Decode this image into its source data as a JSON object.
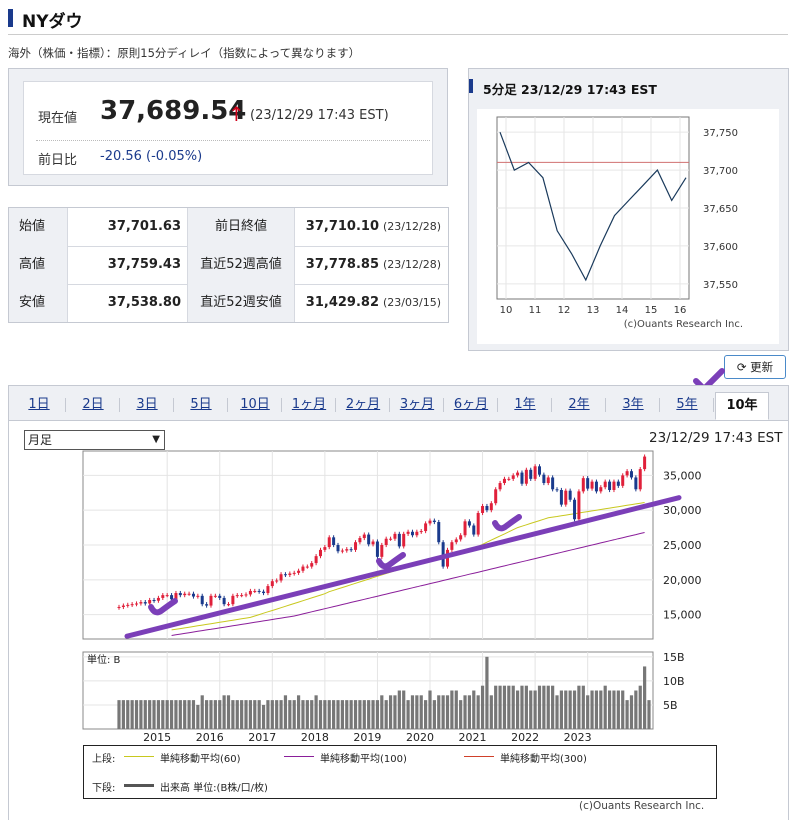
{
  "header": {
    "title": "NYダウ",
    "note": "海外（株価・指標）：原則15分ディレイ（指数によって異なります）"
  },
  "quote": {
    "now_label": "現在値",
    "price": "37,689.54",
    "arrow": "↑",
    "time": "(23/12/29 17:43 EST)",
    "change_label": "前日比",
    "change": "-20.56 (-0.05%)"
  },
  "stats": [
    {
      "l1": "始値",
      "v1": "37,701.63",
      "l2": "前日終値",
      "v2": "37,710.10",
      "d2": "(23/12/28)"
    },
    {
      "l1": "高値",
      "v1": "37,759.43",
      "l2": "直近52週高値",
      "v2": "37,778.85",
      "d2": "(23/12/28)"
    },
    {
      "l1": "安値",
      "v1": "37,538.80",
      "l2": "直近52週安値",
      "v2": "31,429.82",
      "d2": "(23/03/15)"
    }
  ],
  "intraday": {
    "title": "5分足 23/12/29 17:43 EST",
    "credit": "(c)Ouants Research Inc."
  },
  "update_button": "更新",
  "tabs": [
    "1日",
    "2日",
    "3日",
    "5日",
    "10日",
    "1ヶ月",
    "2ヶ月",
    "3ヶ月",
    "6ヶ月",
    "1年",
    "2年",
    "3年",
    "5年",
    "10年"
  ],
  "active_tab": "10年",
  "period_select": "月足",
  "main_time": "23/12/29 17:43 EST",
  "legend": {
    "upper_label": "上段:",
    "lower_label": "下段:",
    "ma60": "単純移動平均(60)",
    "ma100": "単純移動平均(100)",
    "ma300": "単純移動平均(300)",
    "volume": "出来高 単位:(B株/口/枚)"
  },
  "volume_unit": "単位: B",
  "credit2": "(c)Ouants Research Inc.",
  "colors": {
    "up": "#e0203a",
    "down": "#1a3a8c",
    "ma60": "#c8c81e",
    "ma100": "#8a1e9a",
    "ma300": "#d0402a",
    "trend": "#7b3fb8",
    "accent": "#1a3a8c"
  },
  "chart_data": [
    {
      "type": "line",
      "name": "intraday-5min",
      "x": [
        "9:30",
        "10",
        "10:30",
        "11",
        "11:30",
        "12",
        "12:30",
        "13",
        "13:30",
        "14",
        "14:30",
        "15",
        "15:30",
        "16"
      ],
      "values": [
        37750,
        37700,
        37710,
        37690,
        37620,
        37590,
        37555,
        37600,
        37640,
        37660,
        37680,
        37700,
        37660,
        37690
      ],
      "prev_close": 37710.1,
      "ylim": [
        37530,
        37770
      ],
      "yticks": [
        37550,
        37600,
        37650,
        37700,
        37750
      ],
      "yticklabels": [
        "37,550",
        "37,600",
        "37,650",
        "37,700",
        "37,750"
      ],
      "xticks": [
        "10",
        "11",
        "12",
        "13",
        "14",
        "15",
        "16"
      ]
    },
    {
      "type": "candlestick",
      "name": "monthly-10y",
      "x_start": "2014-01",
      "close": [
        16100,
        16300,
        16400,
        16500,
        16600,
        16800,
        16600,
        17100,
        17000,
        17400,
        17800,
        17800,
        17200,
        18100,
        17800,
        18000,
        18000,
        17600,
        17700,
        16500,
        16300,
        17700,
        17700,
        17400,
        16500,
        16500,
        17700,
        17800,
        17800,
        17900,
        18400,
        18400,
        18300,
        18100,
        19100,
        19800,
        19900,
        20800,
        20700,
        20900,
        21000,
        21300,
        21900,
        21900,
        22400,
        23400,
        24300,
        24700,
        26100,
        25000,
        24100,
        24200,
        24400,
        24300,
        25400,
        26000,
        26500,
        25100,
        25500,
        23300,
        25000,
        25900,
        25900,
        26600,
        24800,
        26600,
        26900,
        26400,
        26900,
        27000,
        28100,
        28500,
        28300,
        25400,
        21900,
        24300,
        25400,
        25800,
        26400,
        28400,
        27800,
        26500,
        29600,
        30600,
        30000,
        31000,
        33000,
        33900,
        34500,
        34500,
        35000,
        35400,
        33800,
        35800,
        34500,
        36300,
        35100,
        33900,
        34700,
        33000,
        32900,
        30800,
        32800,
        31500,
        28700,
        32700,
        34600,
        33100,
        34100,
        32700,
        33300,
        34100,
        32900,
        34100,
        33500,
        35000,
        35600,
        34700,
        33000,
        35900,
        37700
      ],
      "ma60": [
        null,
        null,
        null,
        null,
        null,
        null,
        null,
        null,
        null,
        null,
        null,
        null,
        12800,
        12900,
        13000,
        13100,
        13200,
        13300,
        13400,
        13500,
        13600,
        13700,
        13800,
        13900,
        14000,
        14100,
        14200,
        14300,
        14400,
        14500,
        14600,
        14800,
        15000,
        15200,
        15400,
        15600,
        15800,
        16000,
        16200,
        16400,
        16600,
        16800,
        17000,
        17200,
        17400,
        17600,
        17800,
        18000,
        18300,
        18500,
        18700,
        18900,
        19100,
        19300,
        19500,
        19700,
        19900,
        20100,
        20300,
        20500,
        20700,
        20900,
        21100,
        21300,
        21500,
        21700,
        21900,
        22100,
        22300,
        22500,
        22700,
        22900,
        23100,
        23300,
        23400,
        23500,
        23600,
        23700,
        23900,
        24100,
        24300,
        24500,
        24800,
        25100,
        25400,
        25700,
        26000,
        26300,
        26600,
        26900,
        27200,
        27500,
        27700,
        27900,
        28100,
        28300,
        28500,
        28700,
        28900,
        29000,
        29100,
        29200,
        29300,
        29400,
        29500,
        29600,
        29700,
        29800,
        29900,
        30000,
        30100,
        30200,
        30300,
        30400,
        30500,
        30600,
        30700,
        30800,
        30900,
        31000,
        31100
      ],
      "ma100": [
        null,
        null,
        null,
        null,
        null,
        null,
        null,
        null,
        null,
        null,
        null,
        null,
        12000,
        12100,
        12200,
        12300,
        12400,
        12500,
        12600,
        12700,
        12800,
        12900,
        13000,
        13100,
        13200,
        13300,
        13400,
        13500,
        13600,
        13700,
        13800,
        13900,
        14000,
        14100,
        14200,
        14300,
        14400,
        14500,
        14600,
        14700,
        14800,
        14950,
        15100,
        15250,
        15400,
        15550,
        15700,
        15850,
        16000,
        16150,
        16300,
        16450,
        16600,
        16750,
        16900,
        17050,
        17200,
        17350,
        17500,
        17650,
        17800,
        17950,
        18100,
        18250,
        18400,
        18550,
        18700,
        18850,
        19000,
        19150,
        19300,
        19450,
        19600,
        19750,
        19900,
        20050,
        20200,
        20350,
        20500,
        20650,
        20800,
        20950,
        21100,
        21250,
        21400,
        21550,
        21700,
        21850,
        22000,
        22150,
        22300,
        22450,
        22600,
        22750,
        22900,
        23050,
        23200,
        23350,
        23500,
        23650,
        23800,
        23950,
        24100,
        24250,
        24400,
        24550,
        24700,
        24850,
        25000,
        25150,
        25300,
        25450,
        25600,
        25750,
        25900,
        26050,
        26200,
        26350,
        26500,
        26650,
        26800
      ],
      "ylim": [
        11500,
        38500
      ],
      "yticks": [
        15000,
        20000,
        25000,
        30000,
        35000
      ],
      "yticklabels": [
        "15,000",
        "20,000",
        "25,000",
        "30,000",
        "35,000"
      ],
      "xticks": [
        "2015",
        "2016",
        "2017",
        "2018",
        "2019",
        "2020",
        "2021",
        "2022",
        "2023"
      ]
    },
    {
      "type": "bar",
      "name": "monthly-volume",
      "unit": "B",
      "values": [
        6,
        6,
        6,
        6,
        6,
        6,
        6,
        6,
        6,
        6,
        6,
        6,
        6,
        6,
        6,
        6,
        6,
        6,
        5,
        7,
        6,
        6,
        6,
        6,
        7,
        7,
        6,
        6,
        6,
        6,
        6,
        6,
        6,
        5,
        6,
        6,
        6,
        6,
        7,
        6,
        6,
        7,
        6,
        6,
        6,
        7,
        6,
        6,
        6,
        6,
        6,
        6,
        6,
        6,
        6,
        6,
        6,
        6,
        6,
        6,
        7,
        6,
        7,
        7,
        8,
        8,
        6,
        7,
        7,
        7,
        6,
        8,
        6,
        7,
        7,
        7,
        8,
        8,
        6,
        7,
        7,
        8,
        7,
        9,
        15,
        7,
        9,
        9,
        9,
        9,
        9,
        8,
        9,
        9,
        8,
        8,
        9,
        9,
        9,
        9,
        7,
        8,
        8,
        8,
        8,
        9,
        9,
        7,
        8,
        8,
        8,
        9,
        8,
        8,
        8,
        8,
        6,
        7,
        8,
        9,
        13,
        6
      ],
      "ylim": [
        0,
        16
      ],
      "yticks": [
        5,
        10,
        15
      ],
      "yticklabels": [
        "5B",
        "10B",
        "15B"
      ]
    }
  ]
}
